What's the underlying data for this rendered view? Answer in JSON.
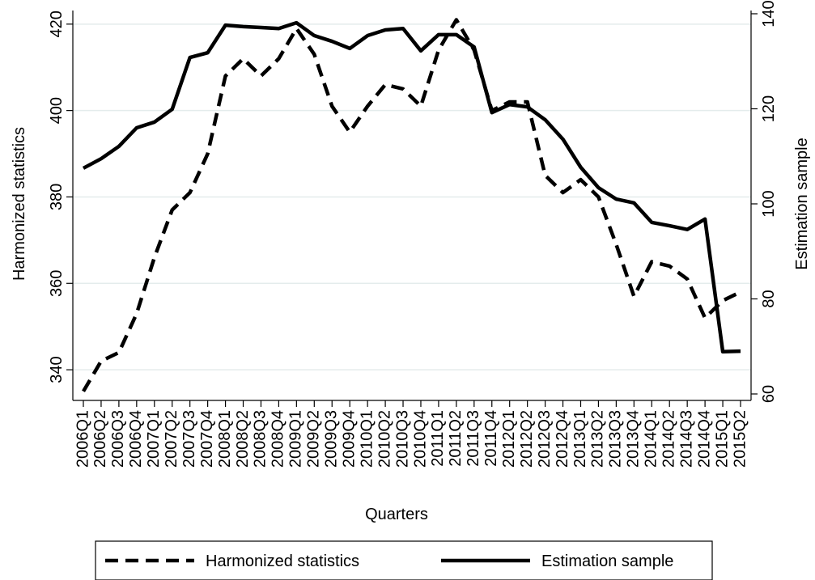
{
  "chart_data": {
    "type": "line",
    "x_label": "Quarters",
    "y_label": "Harmonized statistics",
    "y2_label": "Estimation sample",
    "categories": [
      "2006Q1",
      "2006Q2",
      "2006Q3",
      "2006Q4",
      "2007Q1",
      "2007Q2",
      "2007Q3",
      "2007Q4",
      "2008Q1",
      "2008Q2",
      "2008Q3",
      "2008Q4",
      "2009Q1",
      "2009Q2",
      "2009Q3",
      "2009Q4",
      "2010Q1",
      "2010Q2",
      "2010Q3",
      "2010Q4",
      "2011Q1",
      "2011Q2",
      "2011Q3",
      "2011Q4",
      "2012Q1",
      "2012Q2",
      "2012Q3",
      "2012Q4",
      "2013Q1",
      "2013Q2",
      "2013Q3",
      "2013Q4",
      "2014Q1",
      "2014Q2",
      "2014Q3",
      "2014Q4",
      "2015Q1",
      "2015Q2"
    ],
    "series": [
      {
        "name": "Harmonized statistics",
        "color": "#000000",
        "dash": "dashed",
        "axis": "y",
        "values": [
          335,
          342,
          344,
          353,
          366,
          377,
          381,
          390,
          408,
          412,
          408,
          412,
          419,
          413,
          401,
          395,
          401,
          406,
          405,
          401,
          414,
          421,
          414,
          400,
          402,
          402,
          385,
          381,
          384,
          380,
          369,
          357,
          365,
          364,
          361,
          352,
          356,
          358
        ]
      },
      {
        "name": "Estimation sample",
        "color": "#000000",
        "dash": "solid",
        "axis": "y2",
        "values": [
          107.5,
          109.5,
          112.1,
          116.0,
          117.2,
          119.9,
          130.8,
          131.8,
          137.6,
          137.3,
          137.1,
          136.9,
          138.1,
          135.4,
          134.2,
          132.7,
          135.4,
          136.6,
          136.9,
          132.2,
          135.6,
          135.6,
          133.0,
          119.2,
          120.9,
          120.4,
          117.7,
          113.6,
          107.7,
          103.4,
          101.0,
          100.2,
          96.1,
          95.4,
          94.6,
          96.8,
          68.9,
          69.0
        ]
      }
    ],
    "ylim": [
      334.4,
      422.4
    ],
    "yticks": [
      340,
      360,
      380,
      400,
      420
    ],
    "y2lim": [
      60,
      140
    ],
    "y2ticks": [
      60,
      80,
      100,
      120,
      140
    ],
    "grid": true,
    "legend": "bottom"
  }
}
